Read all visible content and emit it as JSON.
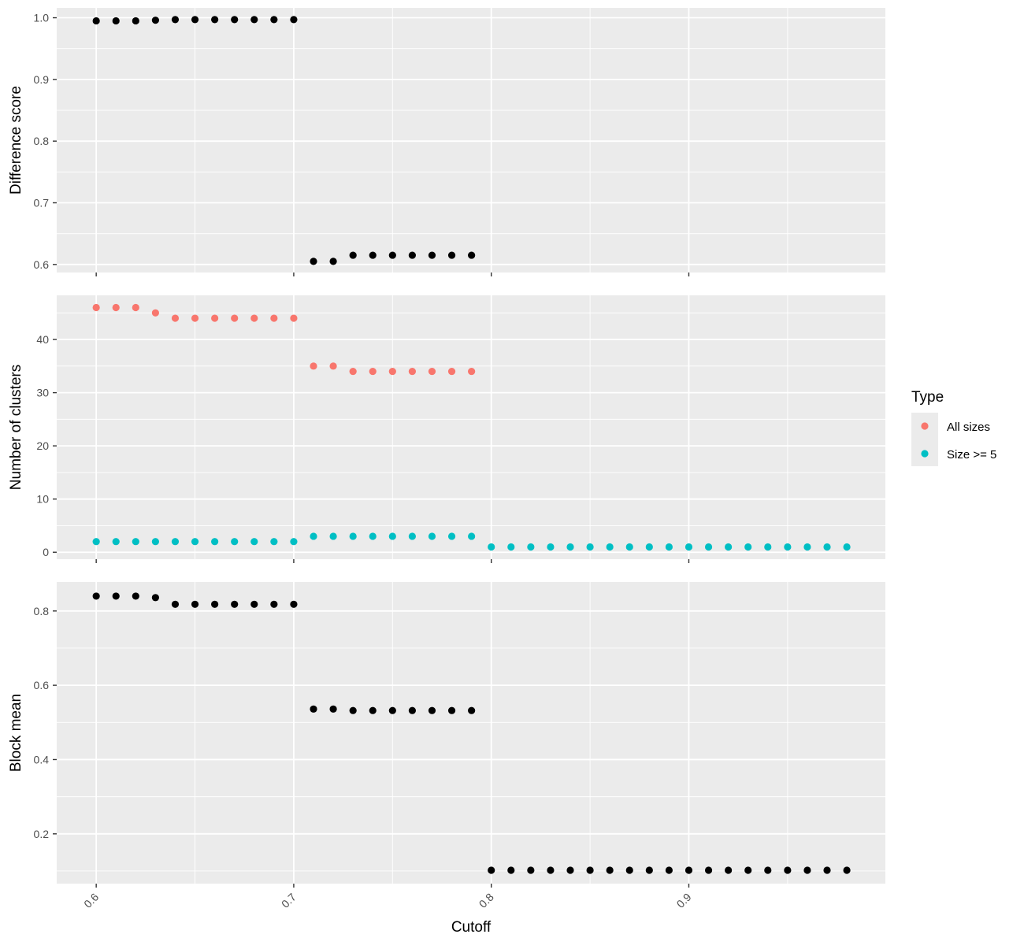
{
  "chart_data": [
    {
      "type": "scatter",
      "panel": "top",
      "title": "",
      "xlabel": "Cutoff",
      "ylabel": "Difference score",
      "xlim": [
        0.58,
        0.9995
      ],
      "ylim": [
        0.587,
        1.016
      ],
      "xticks": [
        0.6,
        0.7,
        0.8,
        0.9
      ],
      "xtick_labels": [
        "0.6",
        "0.7",
        "0.8",
        "0.9"
      ],
      "yticks": [
        0.6,
        0.7,
        0.8,
        0.9,
        1.0
      ],
      "ytick_labels": [
        "0.6",
        "0.7",
        "0.8",
        "0.9",
        "1.0"
      ],
      "grid": true,
      "series": [
        {
          "color": "#000000",
          "x": [
            0.6,
            0.61,
            0.62,
            0.63,
            0.64,
            0.65,
            0.66,
            0.67,
            0.68,
            0.69,
            0.7,
            0.71,
            0.72,
            0.73,
            0.74,
            0.75,
            0.76,
            0.77,
            0.78,
            0.79
          ],
          "y": [
            0.995,
            0.995,
            0.995,
            0.996,
            0.997,
            0.997,
            0.997,
            0.997,
            0.997,
            0.997,
            0.997,
            0.605,
            0.605,
            0.615,
            0.615,
            0.615,
            0.615,
            0.615,
            0.615,
            0.615
          ]
        }
      ]
    },
    {
      "type": "scatter",
      "panel": "middle",
      "title": "",
      "xlabel": "Cutoff",
      "ylabel": "Number of clusters",
      "xlim": [
        0.58,
        0.9995
      ],
      "ylim": [
        -1.3,
        48.3
      ],
      "xticks": [
        0.6,
        0.7,
        0.8,
        0.9
      ],
      "xtick_labels": [
        "0.6",
        "0.7",
        "0.8",
        "0.9"
      ],
      "yticks": [
        0,
        10,
        20,
        30,
        40
      ],
      "ytick_labels": [
        "0",
        "10",
        "20",
        "30",
        "40"
      ],
      "grid": true,
      "legend": {
        "title": "Type",
        "placement": "right",
        "entries": [
          {
            "label": "All sizes",
            "color": "#F8766D"
          },
          {
            "label": "Size >= 5",
            "color": "#00BFC4"
          }
        ]
      },
      "series": [
        {
          "name": "All sizes",
          "color": "#F8766D",
          "x": [
            0.6,
            0.61,
            0.62,
            0.63,
            0.64,
            0.65,
            0.66,
            0.67,
            0.68,
            0.69,
            0.7,
            0.71,
            0.72,
            0.73,
            0.74,
            0.75,
            0.76,
            0.77,
            0.78,
            0.79
          ],
          "y": [
            46,
            46,
            46,
            45,
            44,
            44,
            44,
            44,
            44,
            44,
            44,
            35,
            35,
            34,
            34,
            34,
            34,
            34,
            34,
            34
          ]
        },
        {
          "name": "Size >= 5",
          "color": "#00BFC4",
          "x": [
            0.6,
            0.61,
            0.62,
            0.63,
            0.64,
            0.65,
            0.66,
            0.67,
            0.68,
            0.69,
            0.7,
            0.71,
            0.72,
            0.73,
            0.74,
            0.75,
            0.76,
            0.77,
            0.78,
            0.79,
            0.8,
            0.81,
            0.82,
            0.83,
            0.84,
            0.85,
            0.86,
            0.87,
            0.88,
            0.89,
            0.9,
            0.91,
            0.92,
            0.93,
            0.94,
            0.95,
            0.96,
            0.97,
            0.98
          ],
          "y": [
            2,
            2,
            2,
            2,
            2,
            2,
            2,
            2,
            2,
            2,
            2,
            3,
            3,
            3,
            3,
            3,
            3,
            3,
            3,
            3,
            1,
            1,
            1,
            1,
            1,
            1,
            1,
            1,
            1,
            1,
            1,
            1,
            1,
            1,
            1,
            1,
            1,
            1,
            1
          ]
        }
      ]
    },
    {
      "type": "scatter",
      "panel": "bottom",
      "title": "",
      "xlabel": "Cutoff",
      "ylabel": "Block mean",
      "xlim": [
        0.58,
        0.9995
      ],
      "ylim": [
        0.066,
        0.878
      ],
      "xticks": [
        0.6,
        0.7,
        0.8,
        0.9
      ],
      "xtick_labels": [
        "0.6",
        "0.7",
        "0.8",
        "0.9"
      ],
      "yticks": [
        0.2,
        0.4,
        0.6,
        0.8
      ],
      "ytick_labels": [
        "0.2",
        "0.4",
        "0.6",
        "0.8"
      ],
      "grid": true,
      "series": [
        {
          "color": "#000000",
          "x": [
            0.6,
            0.61,
            0.62,
            0.63,
            0.64,
            0.65,
            0.66,
            0.67,
            0.68,
            0.69,
            0.7,
            0.71,
            0.72,
            0.73,
            0.74,
            0.75,
            0.76,
            0.77,
            0.78,
            0.79,
            0.8,
            0.81,
            0.82,
            0.83,
            0.84,
            0.85,
            0.86,
            0.87,
            0.88,
            0.89,
            0.9,
            0.91,
            0.92,
            0.93,
            0.94,
            0.95,
            0.96,
            0.97,
            0.98
          ],
          "y": [
            0.84,
            0.84,
            0.84,
            0.836,
            0.818,
            0.818,
            0.818,
            0.818,
            0.818,
            0.818,
            0.818,
            0.536,
            0.536,
            0.532,
            0.532,
            0.532,
            0.532,
            0.532,
            0.532,
            0.532,
            0.102,
            0.102,
            0.102,
            0.102,
            0.102,
            0.102,
            0.102,
            0.102,
            0.102,
            0.102,
            0.102,
            0.102,
            0.102,
            0.102,
            0.102,
            0.102,
            0.102,
            0.102,
            0.102
          ]
        }
      ]
    }
  ]
}
